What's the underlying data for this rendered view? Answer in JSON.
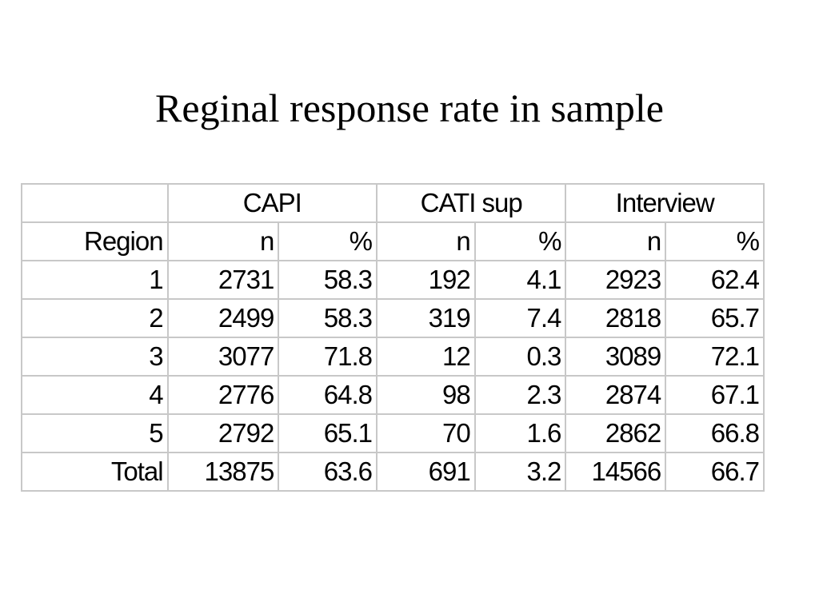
{
  "slide": {
    "title": "Reginal response rate in sample"
  },
  "table": {
    "group_headers": [
      "CAPI",
      "CATI sup",
      "Interview"
    ],
    "sub_headers": [
      "Region",
      "n",
      "%",
      "n",
      "%",
      "n",
      "%"
    ],
    "rows": [
      [
        "1",
        "2731",
        "58.3",
        "192",
        "4.1",
        "2923",
        "62.4"
      ],
      [
        "2",
        "2499",
        "58.3",
        "319",
        "7.4",
        "2818",
        "65.7"
      ],
      [
        "3",
        "3077",
        "71.8",
        "12",
        "0.3",
        "3089",
        "72.1"
      ],
      [
        "4",
        "2776",
        "64.8",
        "98",
        "2.3",
        "2874",
        "67.1"
      ],
      [
        "5",
        "2792",
        "65.1",
        "70",
        "1.6",
        "2862",
        "66.8"
      ],
      [
        "Total",
        "13875",
        "63.6",
        "691",
        "3.2",
        "14566",
        "66.7"
      ]
    ]
  },
  "colors": {
    "border": "#c8c8c8",
    "text": "#000000",
    "background": "#ffffff"
  }
}
